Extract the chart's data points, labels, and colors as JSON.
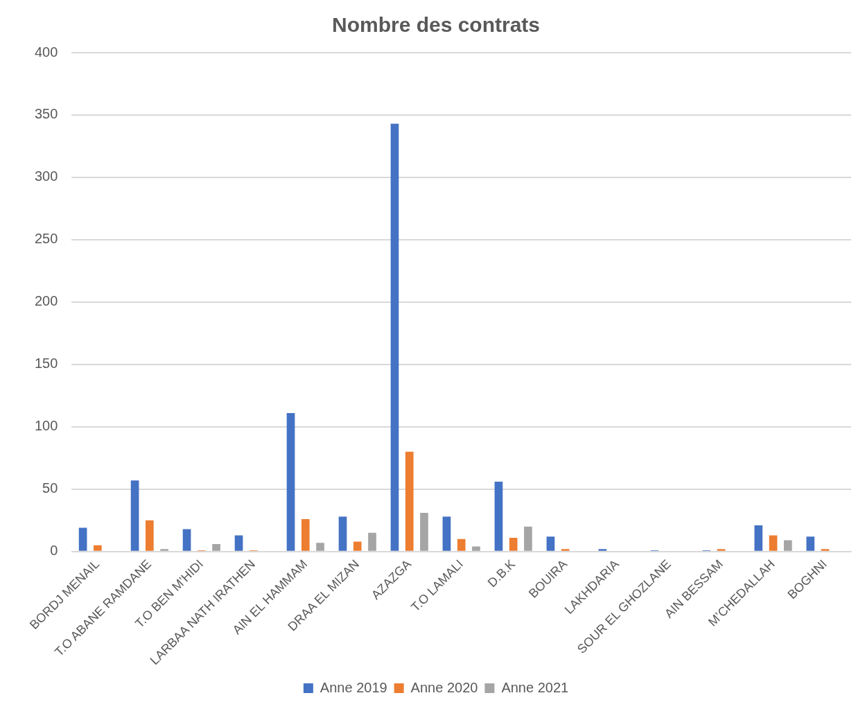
{
  "chart_data": {
    "type": "bar",
    "title": "Nombre des contrats",
    "categories": [
      "BORDJ MENAIL",
      "T.O ABANE RAMDANE",
      "T.O BEN M’HIDI",
      "LARBAA NATH IRATHEN",
      "AIN EL HAMMAM",
      "DRAA EL MIZAN",
      "AZAZGA",
      "T.O LAMALI",
      "D.B.K",
      "BOUIRA",
      "LAKHDARIA",
      "SOUR EL GHOZLANE",
      "AIN BESSAM",
      "M’CHEDALLAH",
      "BOGHNI"
    ],
    "series": [
      {
        "name": "Anne 2019",
        "color": "#4472c4",
        "values": [
          19,
          57,
          18,
          13,
          111,
          28,
          343,
          28,
          56,
          12,
          2,
          1,
          1,
          21,
          12
        ]
      },
      {
        "name": "Anne 2020",
        "color": "#ed7d31",
        "values": [
          5,
          25,
          1,
          1,
          26,
          8,
          80,
          10,
          11,
          2,
          0,
          0,
          2,
          13,
          2
        ]
      },
      {
        "name": "Anne 2021",
        "color": "#a5a5a5",
        "values": [
          0,
          2,
          6,
          0,
          7,
          15,
          31,
          4,
          20,
          0,
          0,
          null,
          null,
          9,
          0
        ]
      }
    ],
    "ylim": [
      0,
      400
    ],
    "yticks": [
      0,
      50,
      100,
      150,
      200,
      250,
      300,
      350,
      400
    ],
    "grid": "y",
    "legend": "bottom"
  }
}
